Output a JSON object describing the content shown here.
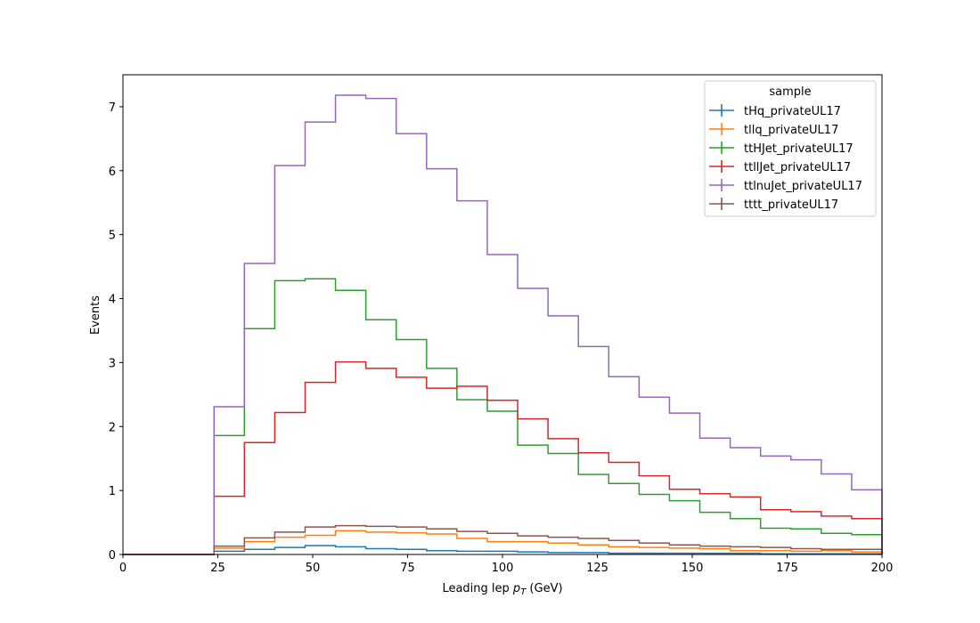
{
  "chart_data": {
    "type": "line",
    "style": "step-histogram",
    "xlabel_prefix": "Leading lep ",
    "xlabel_var": "p",
    "xlabel_sub": "T",
    "xlabel_suffix": " (GeV)",
    "ylabel": "Events",
    "xlim": [
      0,
      200
    ],
    "ylim": [
      0,
      7.5
    ],
    "xticks": [
      0,
      25,
      50,
      75,
      100,
      125,
      150,
      175,
      200
    ],
    "yticks": [
      0,
      1,
      2,
      3,
      4,
      5,
      6,
      7
    ],
    "bin_edges": [
      0,
      8,
      16,
      24,
      32,
      40,
      48,
      56,
      64,
      72,
      80,
      88,
      96,
      104,
      112,
      120,
      128,
      136,
      144,
      152,
      160,
      168,
      176,
      184,
      192,
      200
    ],
    "legend": {
      "title": "sample",
      "position": "top-right"
    },
    "series": [
      {
        "name": "tHq_privateUL17",
        "color": "#1f77b4",
        "values": [
          0,
          0,
          0,
          0.05,
          0.08,
          0.11,
          0.14,
          0.12,
          0.09,
          0.08,
          0.06,
          0.05,
          0.05,
          0.04,
          0.03,
          0.03,
          0.02,
          0.02,
          0.02,
          0.02,
          0.02,
          0.01,
          0.01,
          0.01,
          0.01
        ]
      },
      {
        "name": "tllq_privateUL17",
        "color": "#ff7f0e",
        "values": [
          0,
          0,
          0,
          0.1,
          0.2,
          0.27,
          0.3,
          0.37,
          0.35,
          0.34,
          0.32,
          0.25,
          0.2,
          0.2,
          0.18,
          0.15,
          0.12,
          0.11,
          0.1,
          0.09,
          0.06,
          0.06,
          0.05,
          0.06,
          0.04
        ]
      },
      {
        "name": "ttHJet_privateUL17",
        "color": "#2ca02c",
        "values": [
          0,
          0,
          0,
          1.86,
          3.53,
          4.28,
          4.31,
          4.13,
          3.67,
          3.36,
          2.91,
          2.42,
          2.24,
          1.71,
          1.58,
          1.25,
          1.11,
          0.94,
          0.84,
          0.66,
          0.56,
          0.41,
          0.4,
          0.33,
          0.31
        ]
      },
      {
        "name": "ttllJet_privateUL17",
        "color": "#d62728",
        "values": [
          0,
          0,
          0,
          0.91,
          1.75,
          2.22,
          2.69,
          3.01,
          2.91,
          2.77,
          2.6,
          2.63,
          2.41,
          2.12,
          1.81,
          1.59,
          1.44,
          1.23,
          1.02,
          0.95,
          0.9,
          0.7,
          0.67,
          0.6,
          0.56
        ]
      },
      {
        "name": "ttlnuJet_privateUL17",
        "color": "#9467bd",
        "values": [
          0,
          0,
          0,
          2.31,
          4.55,
          6.08,
          6.76,
          7.18,
          7.13,
          6.58,
          6.03,
          5.53,
          4.69,
          4.16,
          3.73,
          3.25,
          2.78,
          2.46,
          2.21,
          1.82,
          1.67,
          1.54,
          1.48,
          1.26,
          1.01
        ]
      },
      {
        "name": "tttt_privateUL17",
        "color": "#8c564b",
        "values": [
          0,
          0,
          0,
          0.13,
          0.26,
          0.35,
          0.43,
          0.45,
          0.44,
          0.43,
          0.4,
          0.36,
          0.33,
          0.29,
          0.27,
          0.25,
          0.22,
          0.18,
          0.15,
          0.13,
          0.12,
          0.11,
          0.09,
          0.08,
          0.08
        ]
      }
    ]
  }
}
